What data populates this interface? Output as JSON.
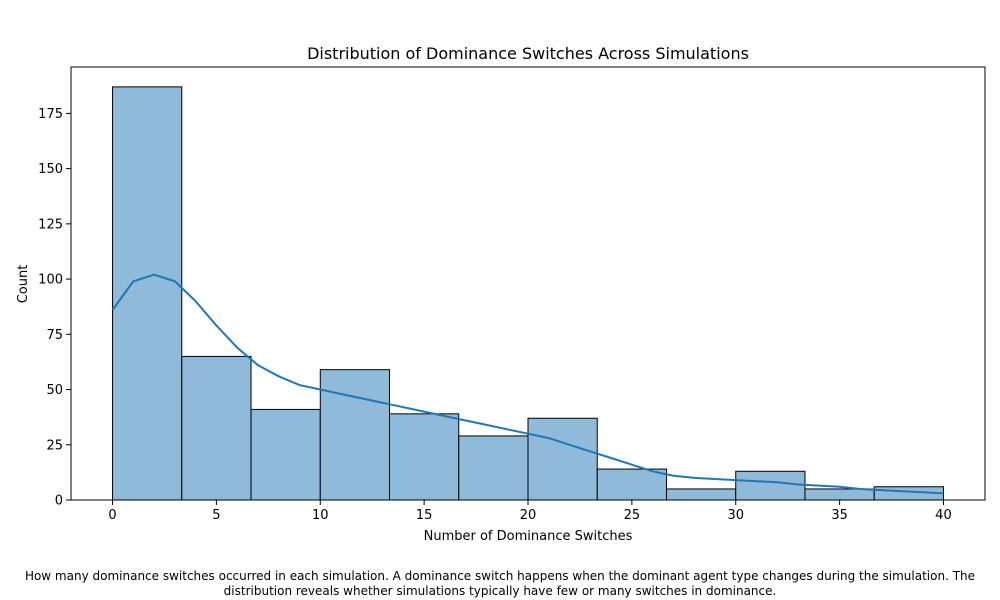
{
  "chart_data": {
    "type": "bar",
    "title": "Distribution of Dominance Switches Across Simulations",
    "xlabel": "Number of Dominance Switches",
    "ylabel": "Count",
    "xlim": [
      -2,
      42
    ],
    "ylim": [
      0,
      196
    ],
    "xticks": [
      0,
      5,
      10,
      15,
      20,
      25,
      30,
      35,
      40
    ],
    "yticks": [
      0,
      25,
      50,
      75,
      100,
      125,
      150,
      175
    ],
    "bin_edges": [
      0,
      3.333,
      6.667,
      10,
      13.333,
      16.667,
      20,
      23.333,
      26.667,
      30,
      33.333,
      36.667,
      40
    ],
    "counts": [
      187,
      65,
      41,
      59,
      39,
      29,
      37,
      14,
      5,
      13,
      5,
      6
    ],
    "kde_curve": {
      "x": [
        0,
        1,
        2,
        3,
        4,
        5,
        6,
        7,
        8,
        9,
        10,
        11,
        12,
        13,
        14,
        15,
        16,
        17,
        18,
        19,
        20,
        21,
        22,
        23,
        24,
        25,
        26,
        27,
        28,
        29,
        30,
        31,
        32,
        33,
        34,
        35,
        36,
        37,
        38,
        39,
        40
      ],
      "y": [
        86,
        99,
        102,
        99,
        90,
        79,
        69,
        61,
        56,
        52,
        50,
        48,
        46,
        44,
        42,
        40,
        38,
        36,
        34,
        32,
        30,
        28,
        25,
        22,
        19,
        16,
        13,
        11,
        10,
        9.5,
        9,
        8.5,
        8,
        7,
        6.5,
        6,
        5,
        4.5,
        4,
        3.5,
        3
      ]
    },
    "colors": {
      "bar_fill": "#8fbada",
      "bar_edge": "#000000",
      "kde_line": "#1f77b4"
    },
    "grid": false
  },
  "caption": {
    "line1": "How many dominance switches occurred in each simulation. A dominance switch happens when the dominant agent type changes during the simulation. The",
    "line2": "distribution reveals whether simulations typically have few or many switches in dominance."
  }
}
